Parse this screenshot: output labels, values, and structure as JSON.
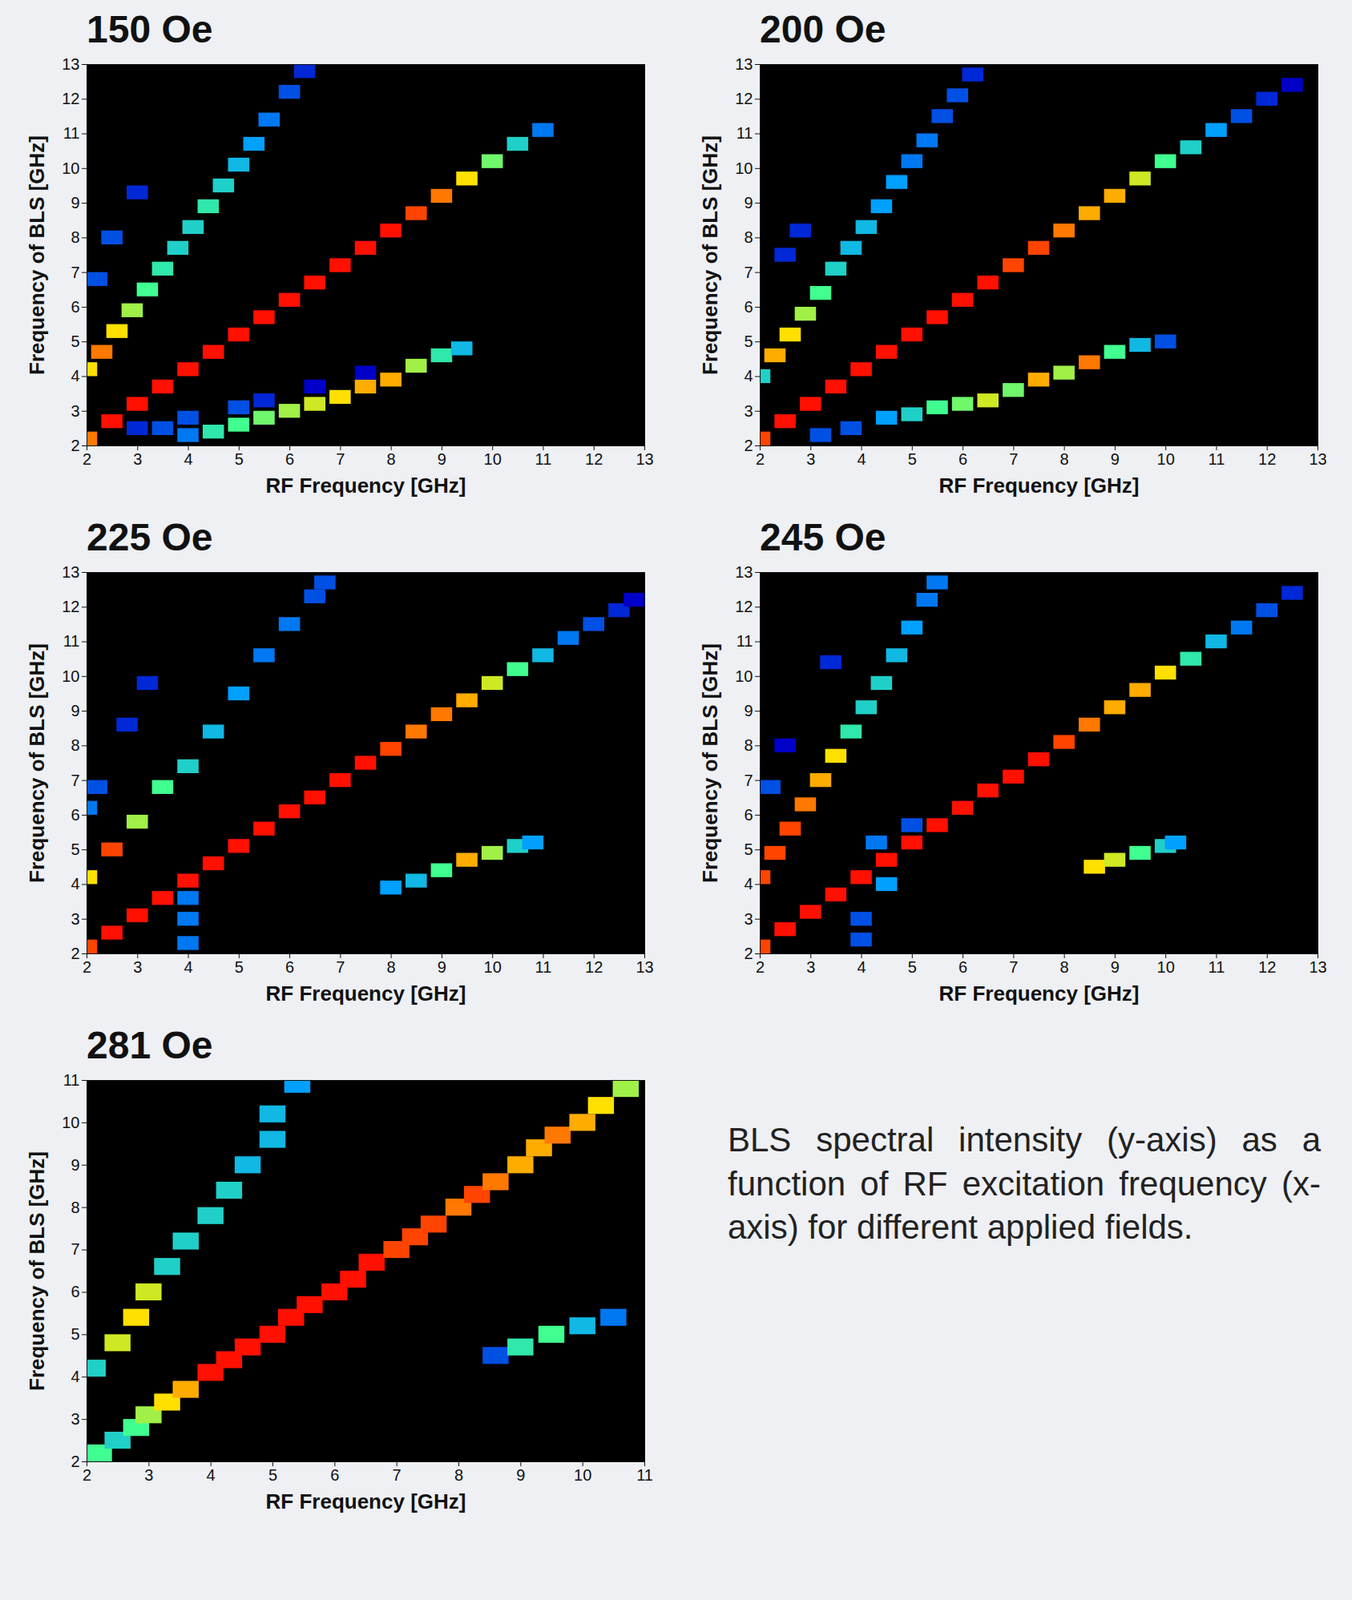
{
  "chart_data": [
    {
      "type": "heatmap",
      "title": "150 Oe",
      "x_label": "RF Frequency [GHz]",
      "y_label": "Frequency of BLS [GHz]",
      "xlim": [
        2,
        13
      ],
      "ylim": [
        2,
        13
      ],
      "xticks": [
        2,
        3,
        4,
        5,
        6,
        7,
        8,
        9,
        10,
        11,
        12,
        13
      ],
      "yticks": [
        2,
        3,
        4,
        5,
        6,
        7,
        8,
        9,
        10,
        11,
        12,
        13
      ],
      "zlim": [
        0,
        1
      ],
      "cells": [
        [
          2,
          2.2,
          0.9
        ],
        [
          2.5,
          2.7,
          1
        ],
        [
          3,
          3.2,
          1
        ],
        [
          3.5,
          3.7,
          1
        ],
        [
          4,
          4.2,
          1
        ],
        [
          4.5,
          4.7,
          1
        ],
        [
          5,
          5.2,
          1
        ],
        [
          5.5,
          5.7,
          1
        ],
        [
          6,
          6.2,
          1
        ],
        [
          6.5,
          6.7,
          1
        ],
        [
          7,
          7.2,
          1
        ],
        [
          7.5,
          7.7,
          1
        ],
        [
          8,
          8.2,
          1
        ],
        [
          8.5,
          8.7,
          0.95
        ],
        [
          9,
          9.2,
          0.9
        ],
        [
          9.5,
          9.7,
          0.8
        ],
        [
          10,
          10.2,
          0.65
        ],
        [
          10.5,
          10.7,
          0.5
        ],
        [
          11,
          11.1,
          0.35
        ],
        [
          2,
          4.2,
          0.8
        ],
        [
          2.3,
          4.7,
          0.9
        ],
        [
          2.6,
          5.3,
          0.8
        ],
        [
          2.9,
          5.9,
          0.7
        ],
        [
          3.2,
          6.5,
          0.6
        ],
        [
          3.5,
          7.1,
          0.55
        ],
        [
          3.8,
          7.7,
          0.5
        ],
        [
          4.1,
          8.3,
          0.5
        ],
        [
          4.4,
          8.9,
          0.55
        ],
        [
          4.7,
          9.5,
          0.5
        ],
        [
          5,
          10.1,
          0.45
        ],
        [
          5.3,
          10.7,
          0.4
        ],
        [
          5.6,
          11.4,
          0.35
        ],
        [
          6,
          12.2,
          0.3
        ],
        [
          6.3,
          12.8,
          0.25
        ],
        [
          2.2,
          6.8,
          0.3
        ],
        [
          2.5,
          8,
          0.3
        ],
        [
          3,
          9.3,
          0.25
        ],
        [
          4.5,
          2.4,
          0.55
        ],
        [
          5,
          2.6,
          0.6
        ],
        [
          5.5,
          2.8,
          0.65
        ],
        [
          6,
          3,
          0.7
        ],
        [
          6.5,
          3.2,
          0.75
        ],
        [
          7,
          3.4,
          0.8
        ],
        [
          7.5,
          3.7,
          0.85
        ],
        [
          8,
          3.9,
          0.85
        ],
        [
          8.5,
          4.3,
          0.7
        ],
        [
          9,
          4.6,
          0.55
        ],
        [
          9.4,
          4.8,
          0.45
        ],
        [
          3,
          2.5,
          0.25
        ],
        [
          3.5,
          2.5,
          0.3
        ],
        [
          4,
          2.3,
          0.35
        ],
        [
          4,
          2.8,
          0.3
        ],
        [
          5,
          3.1,
          0.3
        ],
        [
          5.5,
          3.3,
          0.25
        ],
        [
          6.5,
          3.7,
          0.2
        ],
        [
          7.5,
          4.1,
          0.2
        ]
      ]
    },
    {
      "type": "heatmap",
      "title": "200 Oe",
      "x_label": "RF Frequency [GHz]",
      "y_label": "Frequency of BLS [GHz]",
      "xlim": [
        2,
        13
      ],
      "ylim": [
        2,
        13
      ],
      "xticks": [
        2,
        3,
        4,
        5,
        6,
        7,
        8,
        9,
        10,
        11,
        12,
        13
      ],
      "yticks": [
        2,
        3,
        4,
        5,
        6,
        7,
        8,
        9,
        10,
        11,
        12,
        13
      ],
      "zlim": [
        0,
        1
      ],
      "cells": [
        [
          2,
          2.2,
          0.95
        ],
        [
          2.5,
          2.7,
          1
        ],
        [
          3,
          3.2,
          1
        ],
        [
          3.5,
          3.7,
          1
        ],
        [
          4,
          4.2,
          1
        ],
        [
          4.5,
          4.7,
          1
        ],
        [
          5,
          5.2,
          1
        ],
        [
          5.5,
          5.7,
          1
        ],
        [
          6,
          6.2,
          1
        ],
        [
          6.5,
          6.7,
          1
        ],
        [
          7,
          7.2,
          0.95
        ],
        [
          7.5,
          7.7,
          0.95
        ],
        [
          8,
          8.2,
          0.9
        ],
        [
          8.5,
          8.7,
          0.85
        ],
        [
          9,
          9.2,
          0.85
        ],
        [
          9.5,
          9.7,
          0.75
        ],
        [
          10,
          10.2,
          0.6
        ],
        [
          10.5,
          10.6,
          0.5
        ],
        [
          11,
          11.1,
          0.4
        ],
        [
          11.5,
          11.5,
          0.3
        ],
        [
          12,
          12,
          0.25
        ],
        [
          12.5,
          12.4,
          0.2
        ],
        [
          2,
          4,
          0.5
        ],
        [
          2.3,
          4.6,
          0.85
        ],
        [
          2.6,
          5.2,
          0.8
        ],
        [
          2.9,
          5.8,
          0.7
        ],
        [
          3.2,
          6.4,
          0.6
        ],
        [
          3.5,
          7.1,
          0.5
        ],
        [
          3.8,
          7.7,
          0.45
        ],
        [
          4.1,
          8.3,
          0.45
        ],
        [
          4.4,
          8.9,
          0.4
        ],
        [
          4.7,
          9.6,
          0.4
        ],
        [
          5,
          10.2,
          0.35
        ],
        [
          5.3,
          10.8,
          0.35
        ],
        [
          5.6,
          11.5,
          0.3
        ],
        [
          5.9,
          12.1,
          0.3
        ],
        [
          6.2,
          12.7,
          0.25
        ],
        [
          2.5,
          7.5,
          0.25
        ],
        [
          2.8,
          8.2,
          0.25
        ],
        [
          3.2,
          2.3,
          0.3
        ],
        [
          3.8,
          2.5,
          0.3
        ],
        [
          4.5,
          2.8,
          0.4
        ],
        [
          5,
          2.9,
          0.5
        ],
        [
          5.5,
          3.1,
          0.6
        ],
        [
          6,
          3.2,
          0.65
        ],
        [
          6.5,
          3.3,
          0.75
        ],
        [
          7,
          3.6,
          0.65
        ],
        [
          7.5,
          3.9,
          0.85
        ],
        [
          8,
          4.1,
          0.7
        ],
        [
          8.5,
          4.4,
          0.9
        ],
        [
          9,
          4.7,
          0.6
        ],
        [
          9.5,
          4.9,
          0.45
        ],
        [
          10,
          5,
          0.3
        ]
      ]
    },
    {
      "type": "heatmap",
      "title": "225 Oe",
      "x_label": "RF Frequency [GHz]",
      "y_label": "Frequency of BLS [GHz]",
      "xlim": [
        2,
        13
      ],
      "ylim": [
        2,
        13
      ],
      "xticks": [
        2,
        3,
        4,
        5,
        6,
        7,
        8,
        9,
        10,
        11,
        12,
        13
      ],
      "yticks": [
        2,
        3,
        4,
        5,
        6,
        7,
        8,
        9,
        10,
        11,
        12,
        13
      ],
      "zlim": [
        0,
        1
      ],
      "cells": [
        [
          2,
          2.2,
          0.95
        ],
        [
          2.5,
          2.6,
          1
        ],
        [
          3,
          3.1,
          1
        ],
        [
          3.5,
          3.6,
          1
        ],
        [
          4,
          4.1,
          1
        ],
        [
          4.5,
          4.6,
          1
        ],
        [
          5,
          5.1,
          1
        ],
        [
          5.5,
          5.6,
          1
        ],
        [
          6,
          6.1,
          1
        ],
        [
          6.5,
          6.5,
          1
        ],
        [
          7,
          7,
          1
        ],
        [
          7.5,
          7.5,
          1
        ],
        [
          8,
          7.9,
          0.95
        ],
        [
          8.5,
          8.4,
          0.9
        ],
        [
          9,
          8.9,
          0.9
        ],
        [
          9.5,
          9.3,
          0.85
        ],
        [
          10,
          9.8,
          0.75
        ],
        [
          10.5,
          10.2,
          0.6
        ],
        [
          11,
          10.6,
          0.45
        ],
        [
          11.5,
          11.1,
          0.35
        ],
        [
          12,
          11.5,
          0.3
        ],
        [
          12.5,
          11.9,
          0.25
        ],
        [
          12.8,
          12.2,
          0.2
        ],
        [
          2,
          4.2,
          0.8
        ],
        [
          2.5,
          5,
          0.95
        ],
        [
          3,
          5.8,
          0.7
        ],
        [
          3.5,
          6.8,
          0.6
        ],
        [
          4,
          7.4,
          0.5
        ],
        [
          4.5,
          8.4,
          0.45
        ],
        [
          5,
          9.5,
          0.4
        ],
        [
          5.5,
          10.6,
          0.35
        ],
        [
          6,
          11.5,
          0.35
        ],
        [
          6.5,
          12.3,
          0.3
        ],
        [
          6.7,
          12.7,
          0.3
        ],
        [
          2,
          6.2,
          0.35
        ],
        [
          2.2,
          6.8,
          0.3
        ],
        [
          2.8,
          8.6,
          0.25
        ],
        [
          3.2,
          9.8,
          0.25
        ],
        [
          4,
          2.3,
          0.35
        ],
        [
          4,
          3,
          0.35
        ],
        [
          4,
          3.6,
          0.35
        ],
        [
          8,
          3.9,
          0.4
        ],
        [
          8.5,
          4.1,
          0.45
        ],
        [
          9,
          4.4,
          0.6
        ],
        [
          9.5,
          4.7,
          0.85
        ],
        [
          10,
          4.9,
          0.7
        ],
        [
          10.5,
          5.1,
          0.5
        ],
        [
          10.8,
          5.2,
          0.4
        ]
      ]
    },
    {
      "type": "heatmap",
      "title": "245 Oe",
      "x_label": "RF Frequency [GHz]",
      "y_label": "Frequency of BLS [GHz]",
      "xlim": [
        2,
        13
      ],
      "ylim": [
        2,
        13
      ],
      "xticks": [
        2,
        3,
        4,
        5,
        6,
        7,
        8,
        9,
        10,
        11,
        12,
        13
      ],
      "yticks": [
        2,
        3,
        4,
        5,
        6,
        7,
        8,
        9,
        10,
        11,
        12,
        13
      ],
      "zlim": [
        0,
        1
      ],
      "cells": [
        [
          2,
          2.2,
          0.95
        ],
        [
          2.5,
          2.7,
          1
        ],
        [
          3,
          3.2,
          1
        ],
        [
          3.5,
          3.7,
          1
        ],
        [
          4,
          4.2,
          1
        ],
        [
          4.5,
          4.7,
          1
        ],
        [
          5,
          5.2,
          1
        ],
        [
          5.5,
          5.7,
          1
        ],
        [
          6,
          6.2,
          1
        ],
        [
          6.5,
          6.7,
          1
        ],
        [
          7,
          7.1,
          1
        ],
        [
          7.5,
          7.6,
          1
        ],
        [
          8,
          8.1,
          0.95
        ],
        [
          8.5,
          8.6,
          0.9
        ],
        [
          9,
          9.1,
          0.85
        ],
        [
          9.5,
          9.6,
          0.85
        ],
        [
          10,
          10.1,
          0.8
        ],
        [
          10.5,
          10.5,
          0.55
        ],
        [
          11,
          11,
          0.45
        ],
        [
          11.5,
          11.4,
          0.35
        ],
        [
          12,
          11.9,
          0.3
        ],
        [
          12.5,
          12.4,
          0.25
        ],
        [
          2,
          4.2,
          0.95
        ],
        [
          2.3,
          4.9,
          0.95
        ],
        [
          2.6,
          5.6,
          0.95
        ],
        [
          2.9,
          6.3,
          0.9
        ],
        [
          3.2,
          7,
          0.85
        ],
        [
          3.5,
          7.7,
          0.8
        ],
        [
          3.8,
          8.4,
          0.55
        ],
        [
          4.1,
          9.1,
          0.5
        ],
        [
          4.4,
          9.8,
          0.5
        ],
        [
          4.7,
          10.6,
          0.45
        ],
        [
          5,
          11.4,
          0.4
        ],
        [
          5.3,
          12.2,
          0.35
        ],
        [
          5.5,
          12.7,
          0.35
        ],
        [
          2.2,
          6.8,
          0.3
        ],
        [
          2.5,
          8,
          0.2
        ],
        [
          3.4,
          10.4,
          0.25
        ],
        [
          4,
          3,
          0.3
        ],
        [
          4.5,
          4,
          0.4
        ],
        [
          4.3,
          5.2,
          0.35
        ],
        [
          5,
          5.7,
          0.3
        ],
        [
          4,
          2.4,
          0.3
        ],
        [
          8.6,
          4.5,
          0.8
        ],
        [
          9,
          4.7,
          0.75
        ],
        [
          9.5,
          4.9,
          0.6
        ],
        [
          10,
          5.1,
          0.5
        ],
        [
          10.2,
          5.2,
          0.4
        ]
      ]
    },
    {
      "type": "heatmap",
      "title": "281 Oe",
      "x_label": "RF Frequency [GHz]",
      "y_label": "Frequency of BLS [GHz]",
      "xlim": [
        2,
        11
      ],
      "ylim": [
        2,
        11
      ],
      "xticks": [
        2,
        3,
        4,
        5,
        6,
        7,
        8,
        9,
        10,
        11
      ],
      "yticks": [
        2,
        3,
        4,
        5,
        6,
        7,
        8,
        9,
        10,
        11
      ],
      "zlim": [
        0,
        1
      ],
      "cells": [
        [
          2.2,
          2.2,
          0.6
        ],
        [
          2.5,
          2.5,
          0.5
        ],
        [
          2.8,
          2.8,
          0.6
        ],
        [
          3,
          3.1,
          0.7
        ],
        [
          3.3,
          3.4,
          0.8
        ],
        [
          3.6,
          3.7,
          0.85
        ],
        [
          4,
          4.1,
          1
        ],
        [
          4.3,
          4.4,
          1
        ],
        [
          4.6,
          4.7,
          1
        ],
        [
          5,
          5,
          1
        ],
        [
          5.3,
          5.4,
          1
        ],
        [
          5.6,
          5.7,
          1
        ],
        [
          6,
          6,
          1
        ],
        [
          6.3,
          6.3,
          1
        ],
        [
          6.6,
          6.7,
          1
        ],
        [
          7,
          7,
          0.95
        ],
        [
          7.3,
          7.3,
          0.95
        ],
        [
          7.6,
          7.6,
          0.95
        ],
        [
          8,
          8,
          0.9
        ],
        [
          8.3,
          8.3,
          0.95
        ],
        [
          8.6,
          8.6,
          0.9
        ],
        [
          9,
          9,
          0.85
        ],
        [
          9.3,
          9.4,
          0.85
        ],
        [
          9.6,
          9.7,
          0.9
        ],
        [
          10,
          10,
          0.85
        ],
        [
          10.3,
          10.4,
          0.8
        ],
        [
          10.7,
          10.8,
          0.7
        ],
        [
          2.1,
          4.2,
          0.5
        ],
        [
          2.5,
          4.8,
          0.75
        ],
        [
          2.8,
          5.4,
          0.8
        ],
        [
          3,
          6,
          0.75
        ],
        [
          3.3,
          6.6,
          0.5
        ],
        [
          3.6,
          7.2,
          0.5
        ],
        [
          4,
          7.8,
          0.5
        ],
        [
          4.3,
          8.4,
          0.5
        ],
        [
          4.6,
          9,
          0.45
        ],
        [
          5,
          9.6,
          0.45
        ],
        [
          5,
          10.2,
          0.45
        ],
        [
          5.4,
          10.9,
          0.4
        ],
        [
          8.6,
          4.5,
          0.3
        ],
        [
          9,
          4.7,
          0.55
        ],
        [
          9.5,
          5,
          0.6
        ],
        [
          10,
          5.2,
          0.45
        ],
        [
          10.5,
          5.4,
          0.35
        ]
      ]
    }
  ],
  "caption": "BLS spectral intensity (y-axis) as a function of RF excitation frequency (x-axis) for different applied fields."
}
